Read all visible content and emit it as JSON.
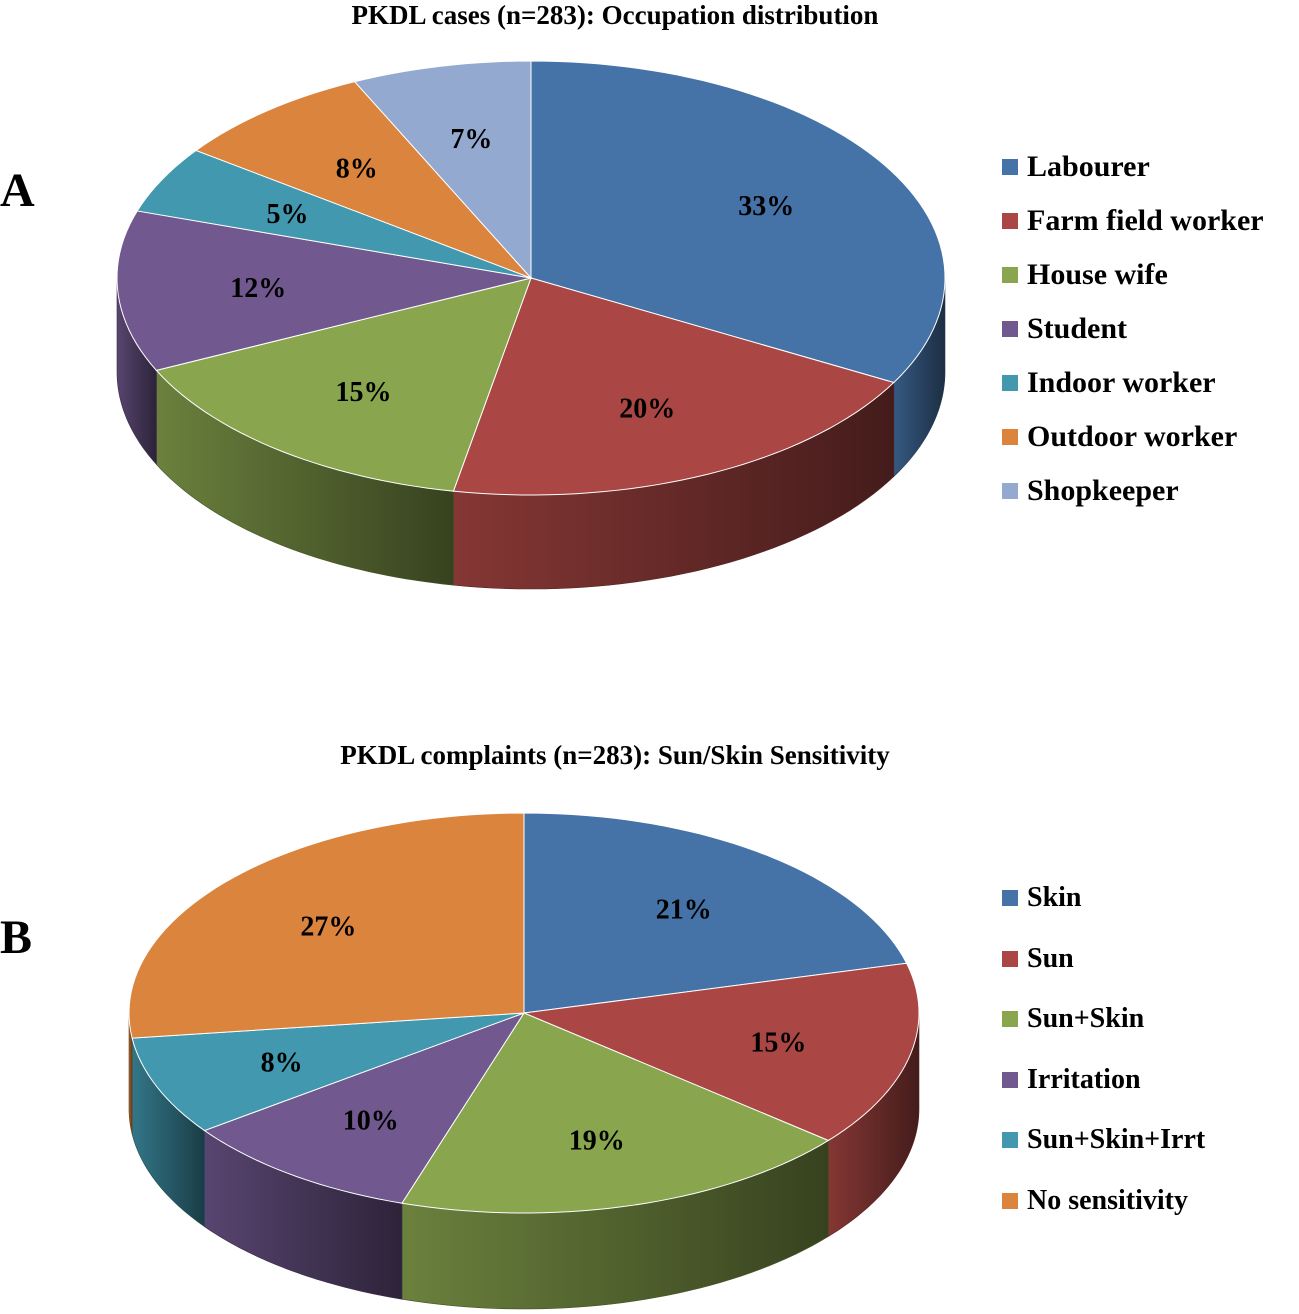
{
  "chart_data": [
    {
      "type": "pie",
      "panel_label": "A",
      "title": "PKDL cases (n=283): Occupation distribution",
      "legend_position": "right",
      "slices": [
        {
          "label": "Labourer",
          "value": 33,
          "value_label": "33%",
          "color": "#4572A7"
        },
        {
          "label": "Farm field worker",
          "value": 20,
          "value_label": "20%",
          "color": "#AA4643"
        },
        {
          "label": "House wife",
          "value": 15,
          "value_label": "15%",
          "color": "#89A54E"
        },
        {
          "label": "Student",
          "value": 12,
          "value_label": "12%",
          "color": "#71588F"
        },
        {
          "label": "Indoor worker",
          "value": 5,
          "value_label": "5%",
          "color": "#4198AF"
        },
        {
          "label": "Outdoor worker",
          "value": 8,
          "value_label": "8%",
          "color": "#DB843D"
        },
        {
          "label": "Shopkeeper",
          "value": 7,
          "value_label": "7%",
          "color": "#93A9CF"
        }
      ]
    },
    {
      "type": "pie",
      "panel_label": "B",
      "title": "PKDL complaints (n=283): Sun/Skin Sensitivity",
      "legend_position": "right",
      "slices": [
        {
          "label": "Skin",
          "value": 21,
          "value_label": "21%",
          "color": "#4572A7"
        },
        {
          "label": "Sun",
          "value": 15,
          "value_label": "15%",
          "color": "#AA4643"
        },
        {
          "label": "Sun+Skin",
          "value": 19,
          "value_label": "19%",
          "color": "#89A54E"
        },
        {
          "label": "Irritation",
          "value": 10,
          "value_label": "10%",
          "color": "#71588F"
        },
        {
          "label": "Sun+Skin+Irrt",
          "value": 8,
          "value_label": "8%",
          "color": "#4198AF"
        },
        {
          "label": "No sensitivity",
          "value": 27,
          "value_label": "27%",
          "color": "#DB843D"
        }
      ]
    }
  ]
}
